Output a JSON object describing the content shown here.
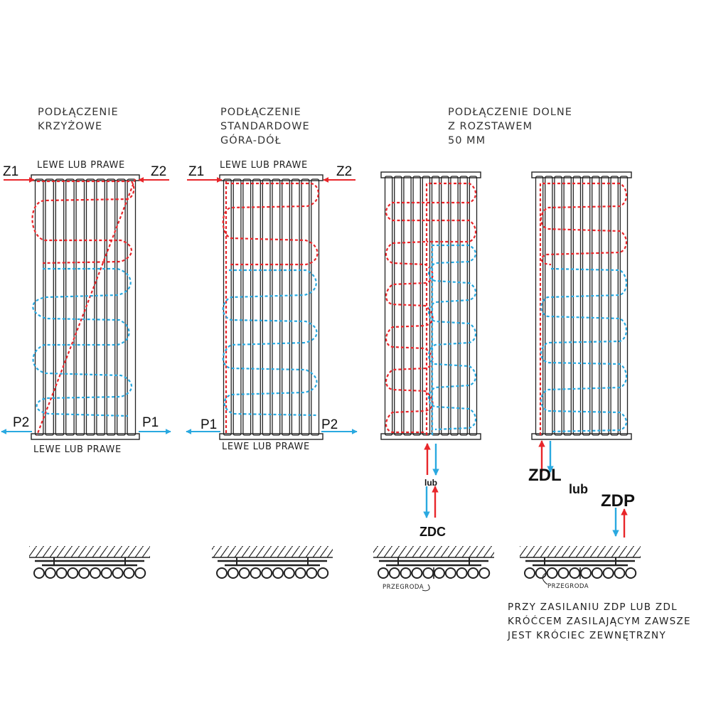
{
  "colors": {
    "supply": "#e8262a",
    "return": "#2aa9e0",
    "outline": "#222222"
  },
  "panel1": {
    "title_line1": "PODŁĄCZENIE",
    "title_line2": "KRZYŻOWE",
    "top_caption": "LEWE LUB PRAWE",
    "bottom_caption": "LEWE LUB PRAWE",
    "label_tl": "Z1",
    "label_tr": "Z2",
    "label_bl": "P2",
    "label_br": "P1"
  },
  "panel2": {
    "title_line1": "PODŁĄCZENIE",
    "title_line2": "STANDARDOWE",
    "title_line3": "GÓRA-DÓŁ",
    "top_caption": "LEWE LUB PRAWE",
    "bottom_caption": "LEWE LUB PRAWE",
    "label_tl": "Z1",
    "label_tr": "Z2",
    "label_bl": "P1",
    "label_br": "P2"
  },
  "panel3": {
    "title_line1": "PODŁĄCZENIE DOLNE",
    "title_line2": "Z ROZSTAWEM",
    "title_line3": "50 MM",
    "or_label": "lub",
    "connection_label": "ZDC",
    "partition_label": "PRZEGRODA"
  },
  "panel4": {
    "left_label": "ZDL",
    "or_label": "lub",
    "right_label": "ZDP",
    "partition_label": "PRZEGRODA"
  },
  "note": {
    "line1": "PRZY ZASILANIU ZDP LUB ZDL",
    "line2": "KRÓĆCEM ZASILAJĄCYM ZAWSZE",
    "line3": "JEST KRÓCIEC ZEWNĘTRZNY"
  }
}
